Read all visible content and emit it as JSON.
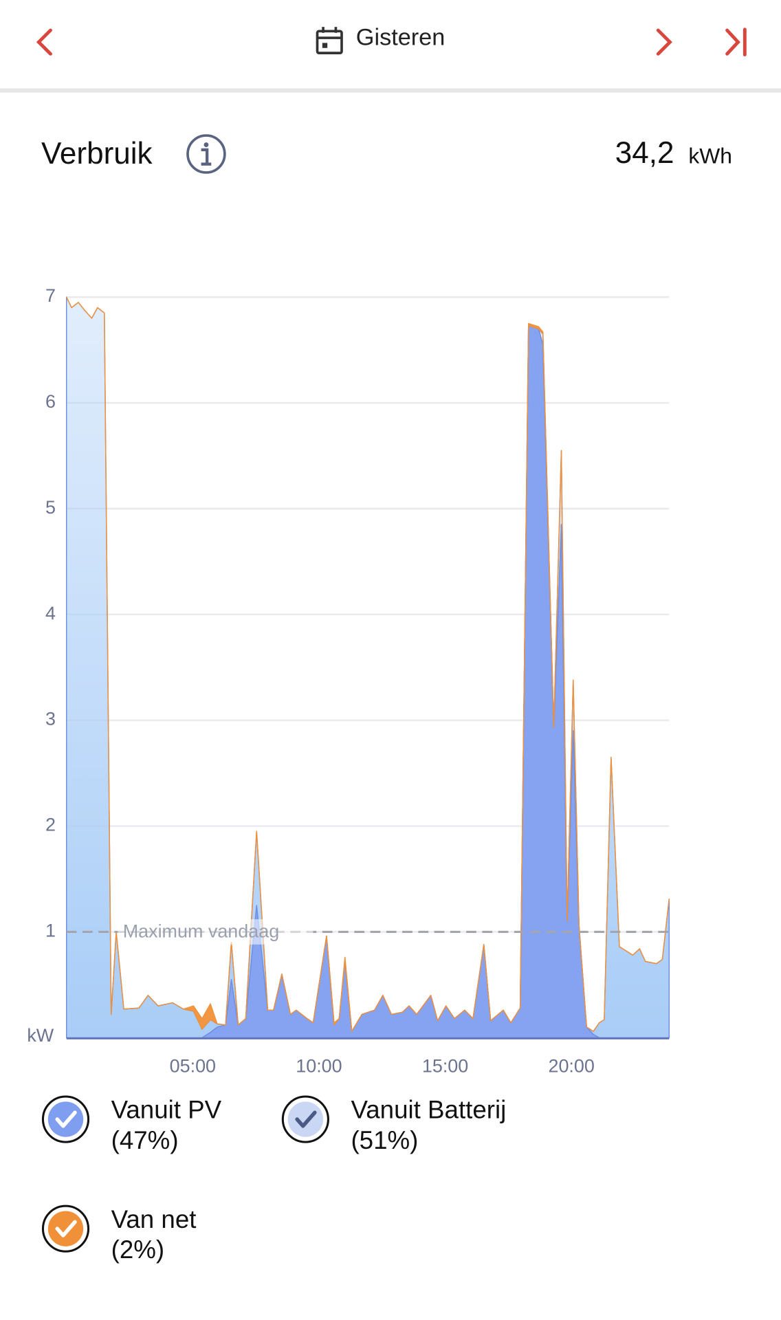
{
  "header": {
    "title": "Gisteren"
  },
  "section": {
    "title": "Verbruik",
    "total": "34,2",
    "unit": "kWh"
  },
  "chart_data": {
    "type": "area",
    "stacked": true,
    "ylabel": "kW",
    "x": [
      0,
      0.2,
      0.47,
      0.7,
      1.0,
      1.23,
      1.5,
      1.77,
      1.97,
      2.27,
      2.87,
      3.23,
      3.63,
      4.2,
      4.63,
      5.03,
      5.37,
      5.7,
      5.97,
      6.3,
      6.53,
      6.8,
      7.1,
      7.53,
      7.97,
      8.2,
      8.53,
      8.87,
      9.1,
      9.53,
      9.77,
      10.3,
      10.6,
      10.8,
      11.03,
      11.3,
      11.7,
      12.2,
      12.53,
      12.87,
      13.3,
      13.57,
      13.87,
      14.43,
      14.7,
      15.03,
      15.37,
      15.77,
      16.1,
      16.53,
      16.8,
      17.3,
      17.6,
      17.97,
      18.3,
      18.7,
      18.87,
      19.3,
      19.6,
      19.83,
      20.07,
      20.3,
      20.6,
      20.87,
      21.1,
      21.3,
      21.57,
      21.9,
      22.43,
      22.7,
      22.93,
      23.37,
      23.6,
      23.87
    ],
    "series": [
      {
        "name": "Vanuit PV",
        "share_label": "(47%)",
        "color": "#7f9ef0",
        "values": [
          0,
          0,
          0,
          0,
          0,
          0,
          0,
          0,
          0,
          0,
          0,
          0,
          0,
          0,
          0,
          0,
          0,
          0.05,
          0.1,
          0.12,
          0.55,
          0.12,
          0.18,
          1.25,
          0.26,
          0.26,
          0.6,
          0.22,
          0.26,
          0.18,
          0.14,
          0.96,
          0.12,
          0.18,
          0.73,
          0.06,
          0.22,
          0.26,
          0.4,
          0.22,
          0.24,
          0.3,
          0.22,
          0.4,
          0.16,
          0.3,
          0.18,
          0.26,
          0.18,
          0.88,
          0.16,
          0.26,
          0.14,
          0.28,
          6.73,
          6.7,
          6.55,
          2.93,
          4.85,
          1.1,
          2.9,
          1.06,
          0.1,
          0.03,
          0,
          0,
          0,
          0,
          0,
          0,
          0,
          0,
          0,
          0
        ]
      },
      {
        "name": "Vanuit Batterij",
        "share_label": "(51%)",
        "color": "#a9cdf7",
        "values": [
          7.0,
          6.9,
          6.95,
          6.88,
          6.8,
          6.9,
          6.85,
          0.22,
          1.0,
          0.27,
          0.28,
          0.4,
          0.3,
          0.33,
          0.27,
          0.25,
          0.08,
          0.12,
          0.03,
          0,
          0.35,
          0,
          0,
          0.7,
          0,
          0,
          0,
          0,
          0,
          0,
          0,
          0,
          0,
          0,
          0,
          0,
          0,
          0,
          0,
          0,
          0,
          0,
          0,
          0,
          0,
          0,
          0,
          0,
          0,
          0,
          0,
          0,
          0,
          0,
          0,
          0,
          0.1,
          0,
          0.7,
          0,
          0.48,
          0,
          0,
          0.03,
          0.14,
          0.17,
          2.65,
          0.86,
          0.78,
          0.84,
          0.72,
          0.7,
          0.74,
          1.31
        ]
      },
      {
        "name": "Van net",
        "share_label": "(2%)",
        "color": "#f0913a",
        "values": [
          0,
          0,
          0,
          0,
          0,
          0,
          0,
          0,
          0,
          0,
          0,
          0,
          0,
          0,
          0,
          0.05,
          0.1,
          0.15,
          0,
          0,
          0,
          0,
          0,
          0,
          0,
          0,
          0,
          0,
          0,
          0,
          0,
          0,
          0.02,
          0,
          0.03,
          0,
          0,
          0,
          0,
          0,
          0,
          0,
          0,
          0,
          0,
          0,
          0,
          0,
          0,
          0,
          0,
          0,
          0,
          0,
          0.02,
          0.02,
          0.02,
          0,
          0,
          0,
          0,
          0,
          0,
          0,
          0,
          0,
          0,
          0,
          0,
          0,
          0,
          0,
          0,
          0
        ]
      }
    ],
    "xlim": [
      0,
      24
    ],
    "ylim": [
      0,
      7
    ],
    "xticks": [
      {
        "value": 5,
        "label": "05:00"
      },
      {
        "value": 10,
        "label": "10:00"
      },
      {
        "value": 15,
        "label": "15:00"
      },
      {
        "value": 20,
        "label": "20:00"
      }
    ],
    "yticks": [
      1,
      2,
      3,
      4,
      5,
      6,
      7
    ],
    "grid": true,
    "reference_line": {
      "label": "Maximum vandaag",
      "value": 1
    }
  }
}
